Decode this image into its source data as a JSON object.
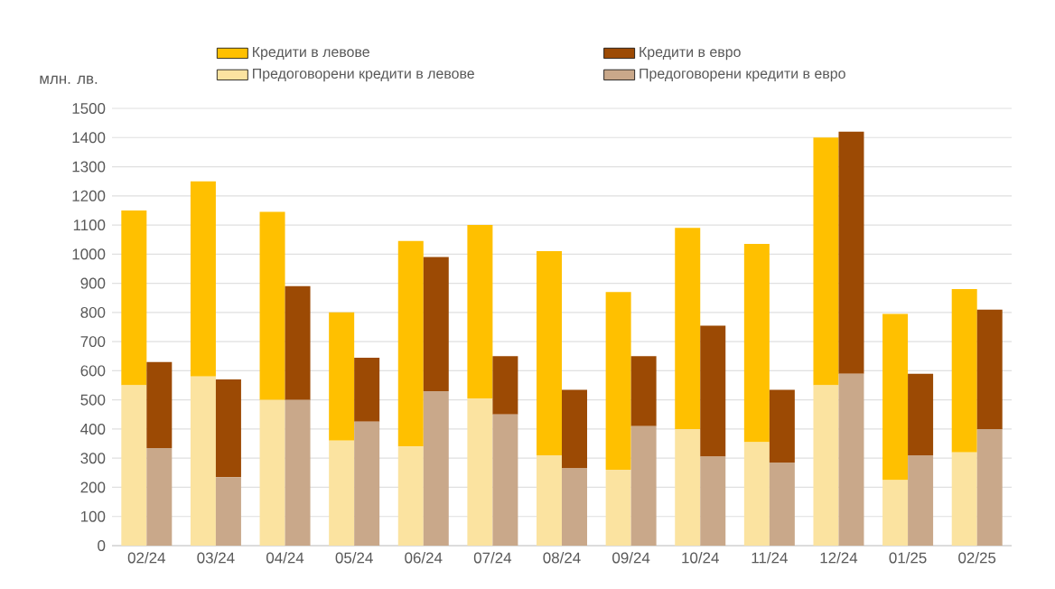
{
  "chart_data": [
    {
      "type": "bar",
      "stacked": true,
      "ylabel": "млн. лв.",
      "categories": [
        "02/24",
        "03/24",
        "04/24",
        "05/24",
        "06/24",
        "07/24",
        "08/24",
        "09/24",
        "10/24",
        "11/24",
        "12/24",
        "01/25",
        "02/25"
      ],
      "series": [
        {
          "name": "Предоговорени кредити в левове",
          "color": "#fbe3a0",
          "values": [
            550,
            580,
            500,
            360,
            340,
            505,
            310,
            260,
            400,
            355,
            550,
            225,
            320
          ]
        },
        {
          "name": "Кредити в левове",
          "color": "#ffc000",
          "values": [
            600,
            670,
            645,
            440,
            705,
            595,
            700,
            610,
            690,
            680,
            850,
            570,
            560
          ]
        }
      ],
      "ylim": [
        0,
        1500
      ],
      "yticks": [
        0,
        100,
        200,
        300,
        400,
        500,
        600,
        700,
        800,
        900,
        1000,
        1100,
        1200,
        1300,
        1400,
        1500
      ],
      "grid": "y",
      "legend": "top"
    },
    {
      "type": "bar",
      "stacked": true,
      "categories": [
        null,
        null,
        null,
        null,
        null,
        null,
        null,
        null,
        null,
        null,
        null,
        null,
        null
      ],
      "series": [
        {
          "name": "Предоговорени кредити в евро",
          "color": "#c9a88a",
          "values": [
            335,
            235,
            500,
            425,
            530,
            450,
            265,
            410,
            305,
            285,
            590,
            310,
            400
          ]
        },
        {
          "name": "Кредити в евро",
          "color": "#9c4a04",
          "values": [
            295,
            335,
            390,
            220,
            460,
            200,
            270,
            240,
            450,
            250,
            830,
            280,
            410
          ]
        }
      ],
      "ylim": [
        0,
        1500
      ],
      "tick_labels": false,
      "legend": "top"
    }
  ]
}
